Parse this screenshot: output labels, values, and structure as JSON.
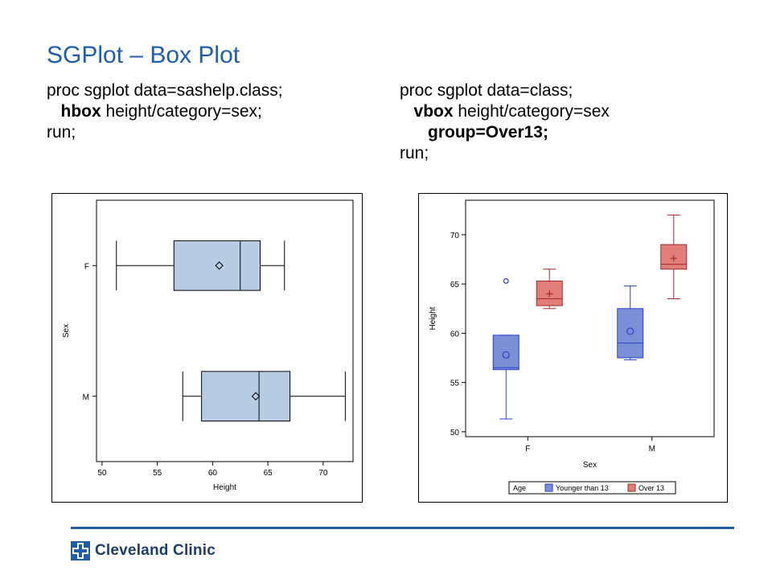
{
  "slide": {
    "title": "SGPlot – Box Plot",
    "left_code": {
      "line1": "proc sgplot data=sashelp.class;",
      "line2_kw": "hbox",
      "line2_rest": " height/category=sex;",
      "line3": "run;"
    },
    "right_code": {
      "line1": "proc sgplot data=class;",
      "line2_kw": "vbox",
      "line2_rest": " height/category=sex",
      "line3_kw": "group=Over13;",
      "line4": "run;"
    },
    "footer": {
      "logo_text": "Cleveland Clinic"
    },
    "colors": {
      "title": "#1f5ea8",
      "rule": "#1f5ea8",
      "logo": "#1f5ea8"
    }
  },
  "chart_data": [
    {
      "type": "box",
      "orientation": "horizontal",
      "xlabel": "Height",
      "ylabel": "Sex",
      "xlim": [
        49.5,
        72.7
      ],
      "xticks": [
        50,
        55,
        60,
        65,
        70
      ],
      "categories": [
        "F",
        "M"
      ],
      "boxes": [
        {
          "category": "F",
          "min": 51.3,
          "q1": 56.5,
          "median": 62.5,
          "q3": 64.3,
          "max": 66.5,
          "mean": 60.6
        },
        {
          "category": "M",
          "min": 57.3,
          "q1": 59.0,
          "median": 64.2,
          "q3": 67.0,
          "max": 72.0,
          "mean": 63.9
        }
      ],
      "fill": "#b8cde4",
      "mean_marker": "diamond"
    },
    {
      "type": "box",
      "orientation": "vertical",
      "xlabel": "Sex",
      "ylabel": "Height",
      "ylim": [
        49.5,
        73.5
      ],
      "yticks": [
        50,
        55,
        60,
        65,
        70
      ],
      "categories": [
        "F",
        "M"
      ],
      "legend": {
        "title": "Age",
        "position": "bottom",
        "entries": [
          "Younger than 13",
          "Over 13"
        ]
      },
      "series": [
        {
          "name": "Younger than 13",
          "color": "#7a8fd6",
          "stroke": "#2b3fc8",
          "mean_marker": "circle",
          "boxes": [
            {
              "category": "F",
              "min": 51.3,
              "q1": 56.3,
              "median": 56.5,
              "q3": 59.8,
              "max": 59.8,
              "mean": 57.8,
              "outliers": [
                65.3
              ]
            },
            {
              "category": "M",
              "min": 57.3,
              "q1": 57.5,
              "median": 59.0,
              "q3": 62.5,
              "max": 64.8,
              "mean": 60.2,
              "outliers": []
            }
          ]
        },
        {
          "name": "Over 13",
          "color": "#e07f7a",
          "stroke": "#a52a2a",
          "mean_marker": "plus",
          "boxes": [
            {
              "category": "F",
              "min": 62.5,
              "q1": 62.8,
              "median": 63.5,
              "q3": 65.3,
              "max": 66.5,
              "mean": 64.0,
              "outliers": []
            },
            {
              "category": "M",
              "min": 63.5,
              "q1": 66.5,
              "median": 67.0,
              "q3": 69.0,
              "max": 72.0,
              "mean": 67.6,
              "outliers": []
            }
          ]
        }
      ]
    }
  ]
}
